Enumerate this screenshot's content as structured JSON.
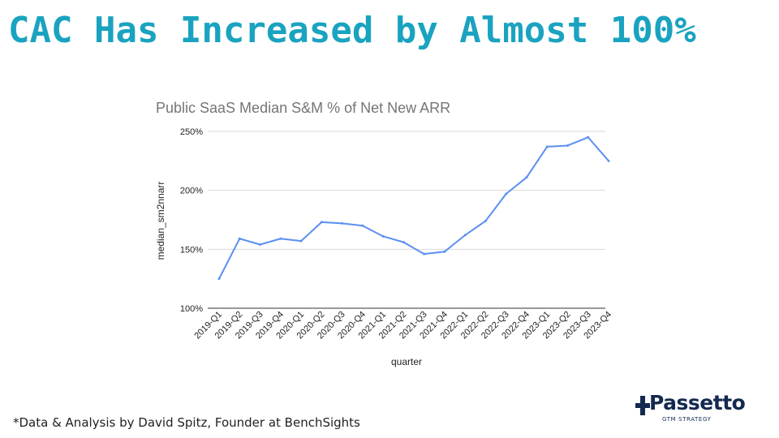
{
  "slide": {
    "title": "CAC Has Increased by Almost 100%",
    "footnote": "*Data & Analysis by David Spitz, Founder at BenchSights"
  },
  "logo": {
    "name": "Passetto",
    "tagline": "GTM STRATEGY",
    "icon": "passetto-plus-p-logo-icon",
    "color": "#14294f"
  },
  "colors": {
    "title": "#1aa3c0",
    "series_line": "#5b8ff0",
    "grid": "#d9d9d9"
  },
  "chart_data": {
    "type": "line",
    "title": "Public SaaS Median S&M % of Net New ARR",
    "xlabel": "quarter",
    "ylabel": "median_sm2nnarr",
    "x": [
      "2019-Q1",
      "2019-Q2",
      "2019-Q3",
      "2019-Q4",
      "2020-Q1",
      "2020-Q2",
      "2020-Q3",
      "2020-Q4",
      "2021-Q1",
      "2021-Q2",
      "2021-Q3",
      "2021-Q4",
      "2022-Q1",
      "2022-Q2",
      "2022-Q3",
      "2022-Q4",
      "2023-Q1",
      "2023-Q2",
      "2023-Q3",
      "2023-Q4"
    ],
    "series": [
      {
        "values": [
          1.25,
          1.59,
          1.54,
          1.59,
          1.57,
          1.73,
          1.72,
          1.7,
          1.61,
          1.56,
          1.46,
          1.48,
          1.62,
          1.74,
          1.97,
          2.11,
          2.37,
          2.38,
          2.45,
          2.25
        ]
      }
    ],
    "ylim": [
      1.0,
      2.5
    ],
    "yticks": [
      1.0,
      1.5,
      2.0,
      2.5
    ],
    "ytick_labels": [
      "100%",
      "150%",
      "200%",
      "250%"
    ],
    "grid": true,
    "legend": "none"
  }
}
